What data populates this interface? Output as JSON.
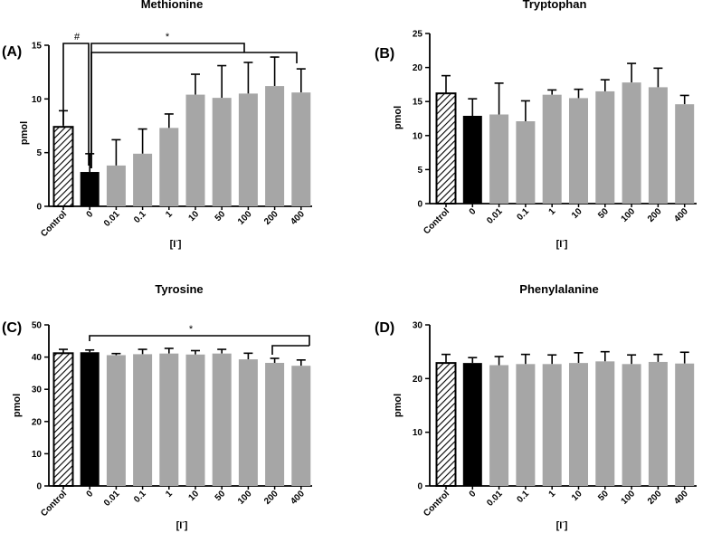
{
  "chart_data": [
    {
      "type": "bar",
      "panel_label": "(A)",
      "title": "Methionine",
      "xlabel": "[I",
      "xlabel_sup": "-",
      "xlabel_close": "]",
      "ylabel": "pmol",
      "ylim": [
        0,
        15
      ],
      "yticks": [
        "0",
        "5",
        "10",
        "15"
      ],
      "categories": [
        "Control",
        "0",
        "0.01",
        "0.1",
        "1",
        "10",
        "50",
        "100",
        "200",
        "400"
      ],
      "values": [
        7.4,
        3.2,
        3.8,
        4.9,
        7.3,
        10.4,
        10.1,
        10.5,
        11.2,
        10.6
      ],
      "errors": [
        1.5,
        1.7,
        2.4,
        2.3,
        1.3,
        1.9,
        3.0,
        2.9,
        2.7,
        2.2
      ],
      "annotations": [
        {
          "symbol": "#",
          "from": "Control",
          "to": "0"
        },
        {
          "symbol": "*",
          "from": "0",
          "to": "100"
        },
        {
          "symbol": "",
          "from": "0",
          "to": "400"
        }
      ]
    },
    {
      "type": "bar",
      "panel_label": "(B)",
      "title": "Tryptophan",
      "xlabel": "[I",
      "xlabel_sup": "-",
      "xlabel_close": "]",
      "ylabel": "pmol",
      "ylim": [
        0,
        25
      ],
      "yticks": [
        "0",
        "5",
        "10",
        "15",
        "20",
        "25"
      ],
      "categories": [
        "Control",
        "0",
        "0.01",
        "0.1",
        "1",
        "10",
        "50",
        "100",
        "200",
        "400"
      ],
      "values": [
        16.2,
        12.9,
        13.1,
        12.1,
        16.0,
        15.5,
        16.5,
        17.8,
        17.1,
        14.6
      ],
      "errors": [
        2.6,
        2.5,
        4.6,
        3.0,
        0.7,
        1.3,
        1.7,
        2.8,
        2.8,
        1.3
      ],
      "annotations": []
    },
    {
      "type": "bar",
      "panel_label": "(C)",
      "title": "Tyrosine",
      "xlabel": "[I",
      "xlabel_sup": "-",
      "xlabel_close": "]",
      "ylabel": "pmol",
      "ylim": [
        0,
        50
      ],
      "yticks": [
        "0",
        "10",
        "20",
        "30",
        "40",
        "50"
      ],
      "categories": [
        "Control",
        "0",
        "0.01",
        "0.1",
        "1",
        "10",
        "50",
        "100",
        "200",
        "400"
      ],
      "values": [
        41.2,
        41.5,
        40.6,
        40.9,
        41.1,
        40.8,
        41.1,
        39.3,
        38.2,
        37.3
      ],
      "errors": [
        1.2,
        0.7,
        0.5,
        1.5,
        1.6,
        1.2,
        1.3,
        1.9,
        1.4,
        1.8
      ],
      "annotations": [
        {
          "symbol": "*",
          "from": "0",
          "to": "400"
        },
        {
          "symbol": "",
          "from": "200",
          "to": "400"
        }
      ]
    },
    {
      "type": "bar",
      "panel_label": "(D)",
      "title": "Phenylalanine",
      "xlabel": "[I",
      "xlabel_sup": "-",
      "xlabel_close": "]",
      "ylabel": "pmol",
      "ylim": [
        0,
        30
      ],
      "yticks": [
        "0",
        "10",
        "20",
        "30"
      ],
      "categories": [
        "Control",
        "0",
        "0.01",
        "0.1",
        "1",
        "10",
        "50",
        "100",
        "200",
        "400"
      ],
      "values": [
        22.9,
        22.9,
        22.5,
        22.7,
        22.7,
        22.9,
        23.2,
        22.7,
        23.1,
        22.8
      ],
      "errors": [
        1.6,
        1.0,
        1.6,
        1.8,
        1.7,
        1.9,
        1.8,
        1.7,
        1.4,
        2.1
      ],
      "annotations": []
    }
  ],
  "colors": {
    "control_fill": "#ffffff",
    "control_hatch": "#000000",
    "zero_fill": "#000000",
    "treatment_fill": "#a6a6a6",
    "axis": "#000000"
  }
}
